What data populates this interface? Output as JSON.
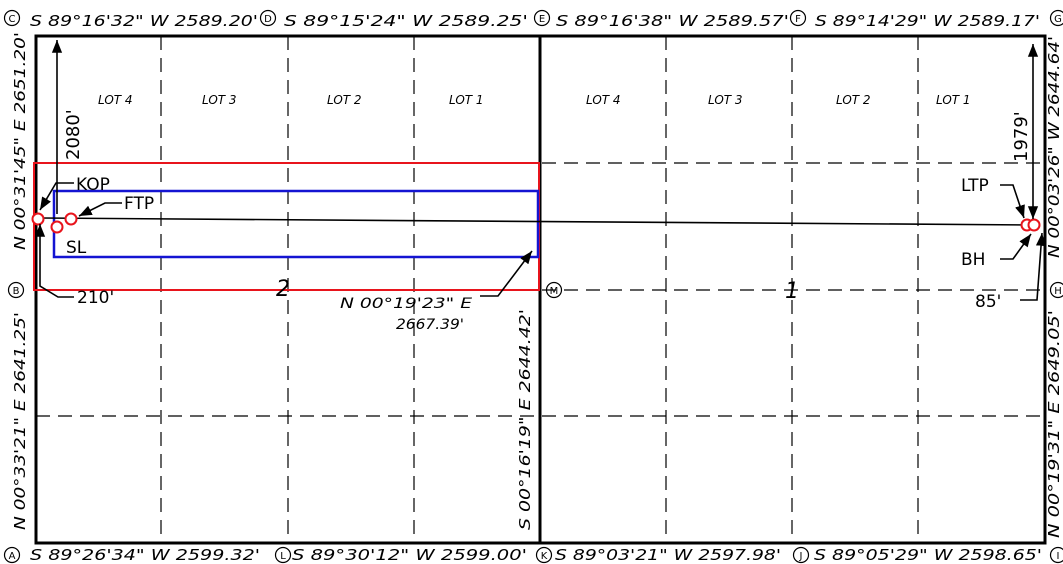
{
  "corners": {
    "A": "A",
    "B": "B",
    "C": "C",
    "D": "D",
    "E": "E",
    "F": "F",
    "G": "G",
    "H": "H",
    "I": "I",
    "J": "J",
    "K": "K",
    "L": "L",
    "M": "M"
  },
  "bearings": {
    "top_c_d": "S 89°16'32\" W 2589.20'",
    "top_d_e": "S 89°15'24\" W 2589.25'",
    "top_e_f": "S 89°16'38\" W 2589.57'",
    "top_f_g": "S 89°14'29\" W 2589.17'",
    "bottom_a_l": "S 89°26'34\" W 2599.32'",
    "bottom_l_k": "S 89°30'12\" W 2599.00'",
    "bottom_k_j": "S 89°03'21\" W 2597.98'",
    "bottom_j_i": "S 89°05'29\" W 2598.65'",
    "left_upper": "N 00°31'45\" E 2651.20'",
    "left_lower": "N 00°33'21\" E 2641.25'",
    "right_upper": "N 00°03'26\" W 2644.64'",
    "right_lower": "N 00°19'31\" E 2649.05'",
    "middle_vertical": "S 00°16'19\" E 2644.42'",
    "lateral_line_1": "N 00°19'23\" E",
    "lateral_line_2": "2667.39'"
  },
  "lots": {
    "west": [
      "LOT 4",
      "LOT 3",
      "LOT 2",
      "LOT 1"
    ],
    "east": [
      "LOT 4",
      "LOT 3",
      "LOT 2",
      "LOT 1"
    ]
  },
  "sections": {
    "west": "2",
    "east": "1"
  },
  "labels": {
    "kop": "KOP",
    "ftp": "FTP",
    "sl": "SL",
    "ltp": "LTP",
    "bh": "BH",
    "setback_west": "210'",
    "setback_east": "85'",
    "offset_north_west": "2080'",
    "offset_north_east": "1979'"
  },
  "colors": {
    "spacing_unit": "#e8141c",
    "producing_area": "#1414d2",
    "well_marker": "#e8141c",
    "linework": "#000000"
  }
}
